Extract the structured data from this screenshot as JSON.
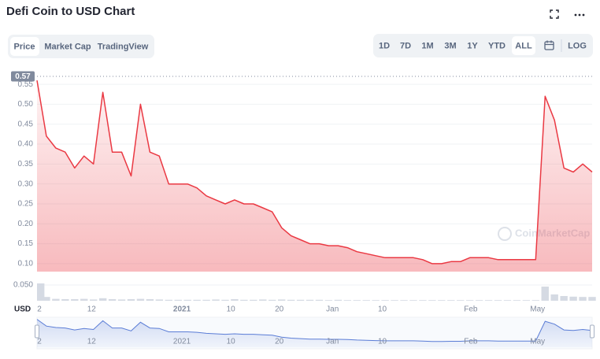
{
  "header": {
    "title": "Defi Coin to USD Chart",
    "tabs": [
      "Price",
      "Market Cap",
      "TradingView"
    ],
    "ranges": [
      "1D",
      "7D",
      "1M",
      "3M",
      "1Y",
      "YTD",
      "ALL"
    ],
    "log": "LOG"
  },
  "chart_data": {
    "type": "line",
    "color": "#ea3943",
    "values": [
      0.56,
      0.42,
      0.39,
      0.38,
      0.34,
      0.37,
      0.35,
      0.53,
      0.38,
      0.38,
      0.32,
      0.5,
      0.38,
      0.37,
      0.3,
      0.3,
      0.3,
      0.29,
      0.27,
      0.26,
      0.25,
      0.26,
      0.25,
      0.25,
      0.24,
      0.23,
      0.19,
      0.17,
      0.16,
      0.15,
      0.15,
      0.145,
      0.145,
      0.14,
      0.13,
      0.125,
      0.12,
      0.115,
      0.115,
      0.115,
      0.115,
      0.11,
      0.1,
      0.1,
      0.105,
      0.105,
      0.115,
      0.115,
      0.115,
      0.11,
      0.11,
      0.11,
      0.11,
      0.11,
      0.52,
      0.46,
      0.34,
      0.33,
      0.35,
      0.33
    ],
    "xlim": [
      0,
      59
    ],
    "xticks": [
      {
        "value": 0.25,
        "label": "2"
      },
      {
        "value": 5.8,
        "label": "12"
      },
      {
        "value": 15.4,
        "label": "2021"
      },
      {
        "value": 20.6,
        "label": "10"
      },
      {
        "value": 25.75,
        "label": "20"
      },
      {
        "value": 31.4,
        "label": "Jan"
      },
      {
        "value": 36.7,
        "label": "10"
      },
      {
        "value": 46.1,
        "label": "Feb"
      },
      {
        "value": 53.2,
        "label": "May"
      }
    ],
    "ylim": [
      0.08,
      0.57
    ],
    "yticks": [
      0.55,
      {
        "value": 0.5,
        "label": "0.50"
      },
      0.45,
      {
        "value": 0.4,
        "label": "0.40"
      },
      0.35,
      {
        "value": 0.3,
        "label": "0.30"
      },
      0.25,
      {
        "value": 0.2,
        "label": "0.20"
      },
      0.15,
      {
        "value": 0.1,
        "label": "0.10"
      }
    ],
    "grid": true,
    "price_label": 0.57,
    "y_unit": "USD",
    "watermark": "CoinMarketCap",
    "volume": {
      "color": "#d5dae3",
      "values": [
        0.055,
        0.012,
        0.006,
        0.005,
        0.005,
        0.006,
        0.004,
        0.008,
        0.005,
        0.004,
        0.005,
        0.006,
        0.005,
        0.004,
        0.003,
        0.003,
        0.003,
        0.003,
        0.003,
        0.004,
        0.003,
        0.005,
        0.003,
        0.003,
        0.004,
        0.003,
        0.004,
        0.003,
        0.003,
        0.003,
        0.003,
        0.002,
        0.003,
        0.002,
        0.002,
        0.002,
        0.002,
        0.002,
        0.002,
        0.002,
        0.002,
        0.002,
        0.002,
        0.002,
        0.002,
        0.002,
        0.002,
        0.002,
        0.002,
        0.002,
        0.002,
        0.002,
        0.002,
        0.002,
        0.045,
        0.02,
        0.015,
        0.013,
        0.012,
        0.012
      ],
      "ylim": [
        0,
        0.07
      ],
      "yticks": [
        {
          "value": 0.05,
          "label": "0.050"
        }
      ]
    },
    "navigator_color": "#5b7dd6"
  }
}
